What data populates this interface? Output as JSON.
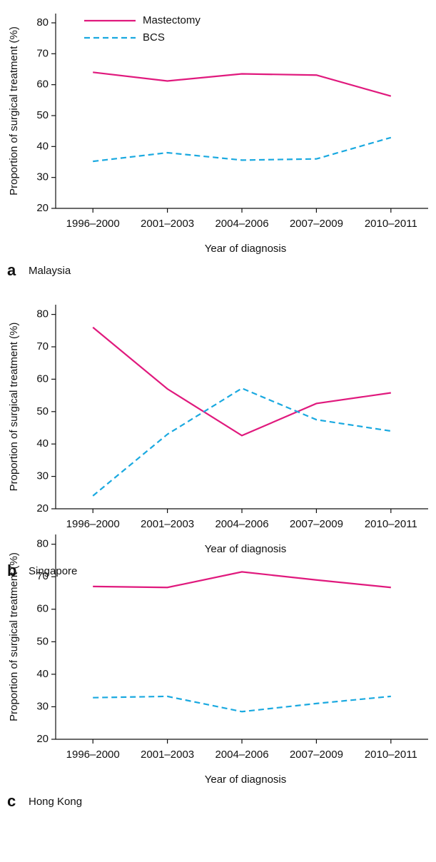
{
  "chart_data": [
    {
      "type": "line",
      "panel": "a",
      "title": "Malaysia",
      "x_label": "Year of diagnosis",
      "y_label": "Proportion of surgical treatment (%)",
      "categories": [
        "1996–2000",
        "2001–2003",
        "2004–2006",
        "2007–2009",
        "2010–2011"
      ],
      "series": [
        {
          "name": "Mastectomy",
          "color": "#e0197d",
          "dash": false,
          "values": [
            64,
            61.2,
            63.5,
            63.1,
            56.3
          ]
        },
        {
          "name": "BCS",
          "color": "#1aa9e0",
          "dash": true,
          "values": [
            35.2,
            38,
            35.6,
            36,
            42.9
          ]
        }
      ],
      "ylim": [
        20,
        83
      ],
      "yticks": [
        20,
        30,
        40,
        50,
        60,
        70,
        80
      ],
      "legend": "top-left"
    },
    {
      "type": "line",
      "panel": "b",
      "title": "Singapore",
      "x_label": "Year of diagnosis",
      "y_label": "Proportion of surgical treatment (%)",
      "categories": [
        "1996–2000",
        "2001–2003",
        "2004–2006",
        "2007–2009",
        "2010–2011"
      ],
      "series": [
        {
          "color": "#e0197d",
          "dash": false,
          "values": [
            76,
            57,
            42.6,
            52.5,
            55.8
          ]
        },
        {
          "color": "#1aa9e0",
          "dash": true,
          "values": [
            24,
            43,
            57.2,
            47.5,
            44
          ]
        }
      ],
      "ylim": [
        20,
        83
      ],
      "yticks": [
        20,
        30,
        40,
        50,
        60,
        70,
        80
      ]
    },
    {
      "type": "line",
      "panel": "c",
      "title": "Hong Kong",
      "x_label": "Year of diagnosis",
      "y_label": "Proportion of surgical treatment (%)",
      "categories": [
        "1996–2000",
        "2001–2003",
        "2004–2006",
        "2007–2009",
        "2010–2011"
      ],
      "series": [
        {
          "color": "#e0197d",
          "dash": false,
          "values": [
            67,
            66.7,
            71.5,
            69,
            66.7
          ]
        },
        {
          "color": "#1aa9e0",
          "dash": true,
          "values": [
            32.8,
            33.2,
            28.5,
            31,
            33.2
          ]
        }
      ],
      "ylim": [
        20,
        83
      ],
      "yticks": [
        20,
        30,
        40,
        50,
        60,
        70,
        80
      ]
    }
  ]
}
